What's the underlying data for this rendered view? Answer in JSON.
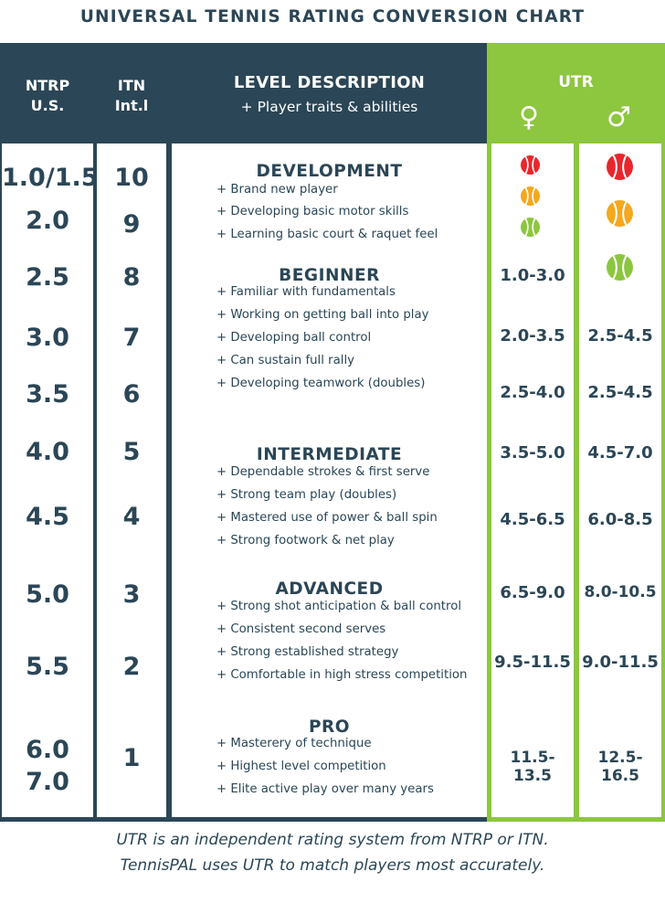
{
  "title": "UNIVERSAL TENNIS RATING CONVERSION CHART",
  "headers": {
    "ntrp_line1": "NTRP",
    "ntrp_line2": "U.S.",
    "itn_line1": "ITN",
    "itn_line2": "Int.l",
    "level_title": "LEVEL DESCRIPTION",
    "level_sub": "+ Player traits & abilities",
    "utr": "UTR",
    "female_symbol": "♀",
    "male_symbol": "♂"
  },
  "rows": [
    {
      "ntrp": "1.0/1.5",
      "itn": "10"
    },
    {
      "ntrp": "2.0",
      "itn": "9"
    },
    {
      "ntrp": "2.5",
      "itn": "8"
    },
    {
      "ntrp": "3.0",
      "itn": "7"
    },
    {
      "ntrp": "3.5",
      "itn": "6"
    },
    {
      "ntrp": "4.0",
      "itn": "5"
    },
    {
      "ntrp": "4.5",
      "itn": "4"
    },
    {
      "ntrp": "5.0",
      "itn": "3"
    },
    {
      "ntrp": "5.5",
      "itn": "2"
    },
    {
      "ntrp": "6.0",
      "itn": "1"
    },
    {
      "ntrp": "7.0",
      "itn": ""
    }
  ],
  "levels": [
    {
      "name": "DEVELOPMENT",
      "traits": [
        "+ Brand new player",
        "+ Developing basic motor skills",
        "+ Learning basic court & raquet feel"
      ]
    },
    {
      "name": "BEGINNER",
      "traits": [
        "+ Familiar with fundamentals",
        "+ Working on getting ball into play",
        "+ Developing ball control",
        "+ Can sustain full rally",
        "+ Developing teamwork (doubles)"
      ]
    },
    {
      "name": "INTERMEDIATE",
      "traits": [
        "+ Dependable strokes & first serve",
        "+ Strong team play (doubles)",
        "+ Mastered use of power & ball spin",
        "+ Strong footwork & net play"
      ]
    },
    {
      "name": "ADVANCED",
      "traits": [
        "+ Strong shot anticipation & ball control",
        "+ Consistent second serves",
        "+ Strong established strategy",
        "+ Comfortable in high stress competition"
      ]
    },
    {
      "name": "PRO",
      "traits": [
        "+ Masterery of technique",
        "+ Highest level competition",
        "+ Elite active play over many years"
      ]
    }
  ],
  "utr_female": [
    "1.0-3.0",
    "2.0-3.5",
    "2.5-4.0",
    "3.5-5.0",
    "4.5-6.5",
    "6.5-9.0",
    "9.5-11.5",
    "11.5-13.5"
  ],
  "utr_male": [
    "2.5-4.5",
    "2.5-4.5",
    "4.5-7.0",
    "6.0-8.5",
    "8.0-10.5",
    "9.0-11.5",
    "12.5-16.5"
  ],
  "balls": {
    "female": [
      "red",
      "orange",
      "green"
    ],
    "male": [
      "red",
      "orange",
      "green"
    ]
  },
  "colors": {
    "navy": "#2b4656",
    "utr_green": "#8dc63f",
    "ball_red": "#e8262b",
    "ball_orange": "#f3a81e",
    "ball_green": "#8cc63f"
  },
  "footer": {
    "line1": "UTR is an independent rating system from NTRP or ITN.",
    "line2": "TennisPAL uses UTR to match players most accurately."
  }
}
